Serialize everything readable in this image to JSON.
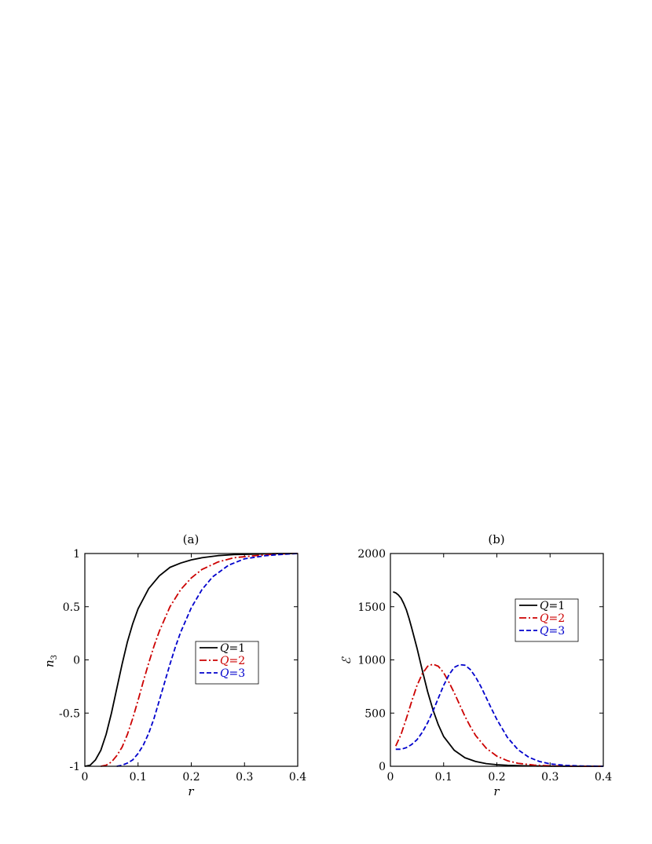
{
  "chart_data": [
    {
      "type": "line",
      "title": "(a)",
      "xlabel": "r",
      "ylabel": "n3",
      "ylabel_main": "n",
      "ylabel_sub": "3",
      "xlim": [
        0,
        0.4
      ],
      "ylim": [
        -1,
        1
      ],
      "xticks": [
        0,
        0.1,
        0.2,
        0.3,
        0.4
      ],
      "xtick_labels": [
        "0",
        "0.1",
        "0.2",
        "0.3",
        "0.4"
      ],
      "yticks": [
        -1,
        -0.5,
        0,
        0.5,
        1
      ],
      "ytick_labels": [
        "-1",
        "-0.5",
        "0",
        "0.5",
        "1"
      ],
      "legend_position": "center-right",
      "series": [
        {
          "name": "Q=1",
          "color": "#000000",
          "dash": "solid",
          "x": [
            0,
            0.01,
            0.02,
            0.03,
            0.04,
            0.05,
            0.06,
            0.07,
            0.08,
            0.09,
            0.1,
            0.12,
            0.14,
            0.16,
            0.18,
            0.2,
            0.22,
            0.25,
            0.28,
            0.32,
            0.36,
            0.4
          ],
          "y": [
            -1.0,
            -0.99,
            -0.94,
            -0.85,
            -0.7,
            -0.5,
            -0.27,
            -0.04,
            0.17,
            0.34,
            0.48,
            0.67,
            0.79,
            0.87,
            0.91,
            0.94,
            0.96,
            0.98,
            0.99,
            0.995,
            0.999,
            1.0
          ]
        },
        {
          "name": "Q=2",
          "color": "#cc0000",
          "dash": "dashdot",
          "x": [
            0.03,
            0.04,
            0.05,
            0.06,
            0.07,
            0.08,
            0.09,
            0.1,
            0.11,
            0.12,
            0.13,
            0.14,
            0.16,
            0.18,
            0.2,
            0.22,
            0.25,
            0.28,
            0.32,
            0.36,
            0.4
          ],
          "y": [
            -1.0,
            -0.99,
            -0.96,
            -0.9,
            -0.82,
            -0.7,
            -0.55,
            -0.38,
            -0.2,
            -0.03,
            0.13,
            0.27,
            0.5,
            0.66,
            0.77,
            0.85,
            0.92,
            0.96,
            0.98,
            0.995,
            1.0
          ]
        },
        {
          "name": "Q=3",
          "color": "#0000cc",
          "dash": "dashed",
          "x": [
            0.06,
            0.07,
            0.08,
            0.09,
            0.1,
            0.11,
            0.12,
            0.13,
            0.14,
            0.15,
            0.16,
            0.17,
            0.18,
            0.2,
            0.22,
            0.24,
            0.27,
            0.3,
            0.34,
            0.38,
            0.4
          ],
          "y": [
            -1.0,
            -0.99,
            -0.97,
            -0.94,
            -0.88,
            -0.8,
            -0.69,
            -0.55,
            -0.38,
            -0.21,
            -0.04,
            0.12,
            0.26,
            0.49,
            0.66,
            0.78,
            0.89,
            0.95,
            0.98,
            0.995,
            1.0
          ]
        }
      ]
    },
    {
      "type": "line",
      "title": "(b)",
      "xlabel": "r",
      "ylabel": "ℰ",
      "xlim": [
        0,
        0.4
      ],
      "ylim": [
        0,
        2000
      ],
      "xticks": [
        0,
        0.1,
        0.2,
        0.3,
        0.4
      ],
      "xtick_labels": [
        "0",
        "0.1",
        "0.2",
        "0.3",
        "0.4"
      ],
      "yticks": [
        0,
        500,
        1000,
        1500,
        2000
      ],
      "ytick_labels": [
        "0",
        "500",
        "1000",
        "1500",
        "2000"
      ],
      "legend_position": "top-right",
      "series": [
        {
          "name": "Q=1",
          "color": "#000000",
          "dash": "solid",
          "x": [
            0.005,
            0.01,
            0.015,
            0.02,
            0.025,
            0.03,
            0.035,
            0.04,
            0.05,
            0.06,
            0.07,
            0.08,
            0.09,
            0.1,
            0.12,
            0.14,
            0.16,
            0.18,
            0.2,
            0.22,
            0.25,
            0.3,
            0.35,
            0.4
          ],
          "y": [
            1640,
            1630,
            1610,
            1580,
            1530,
            1470,
            1390,
            1300,
            1110,
            900,
            700,
            530,
            390,
            280,
            150,
            80,
            45,
            25,
            15,
            9,
            4,
            1,
            0,
            0
          ]
        },
        {
          "name": "Q=2",
          "color": "#cc0000",
          "dash": "dashdot",
          "x": [
            0.01,
            0.02,
            0.03,
            0.04,
            0.05,
            0.06,
            0.07,
            0.08,
            0.09,
            0.1,
            0.11,
            0.12,
            0.13,
            0.14,
            0.15,
            0.16,
            0.18,
            0.2,
            0.22,
            0.24,
            0.27,
            0.3,
            0.35,
            0.4
          ],
          "y": [
            190,
            300,
            450,
            610,
            760,
            870,
            940,
            960,
            940,
            880,
            790,
            690,
            580,
            470,
            375,
            290,
            170,
            95,
            52,
            28,
            11,
            4,
            1,
            0
          ]
        },
        {
          "name": "Q=3",
          "color": "#0000cc",
          "dash": "dashed",
          "x": [
            0.01,
            0.02,
            0.03,
            0.04,
            0.05,
            0.06,
            0.07,
            0.08,
            0.09,
            0.1,
            0.11,
            0.12,
            0.13,
            0.14,
            0.15,
            0.16,
            0.17,
            0.18,
            0.19,
            0.2,
            0.22,
            0.24,
            0.26,
            0.28,
            0.3,
            0.33,
            0.36,
            0.4
          ],
          "y": [
            160,
            160,
            175,
            205,
            250,
            320,
            410,
            520,
            640,
            760,
            860,
            930,
            955,
            950,
            910,
            840,
            750,
            645,
            540,
            440,
            270,
            155,
            85,
            45,
            22,
            8,
            3,
            0
          ]
        }
      ]
    }
  ]
}
